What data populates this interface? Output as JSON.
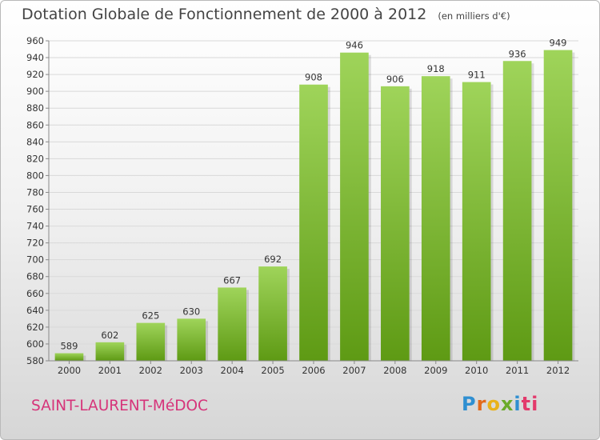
{
  "title": "Dotation Globale de Fonctionnement de 2000 à 2012",
  "subtitle": "(en milliers d'€)",
  "commune": "SAINT-LAURENT-MéDOC",
  "brand": "Proxiti",
  "colors": {
    "bar_light": "#9fd45a",
    "bar_dark": "#5e9a14",
    "grid": "#d9d9d9",
    "axis": "#888888",
    "commune": "#d6347a"
  },
  "chart_data": {
    "type": "bar",
    "title": "Dotation Globale de Fonctionnement de 2000 à 2012",
    "subtitle": "(en milliers d'€)",
    "xlabel": "",
    "ylabel": "",
    "categories": [
      "2000",
      "2001",
      "2002",
      "2003",
      "2004",
      "2005",
      "2006",
      "2007",
      "2008",
      "2009",
      "2010",
      "2011",
      "2012"
    ],
    "values": [
      589,
      602,
      625,
      630,
      667,
      692,
      908,
      946,
      906,
      918,
      911,
      936,
      949
    ],
    "ylim": [
      580,
      960
    ],
    "ytick_step": 20,
    "grid": true
  }
}
